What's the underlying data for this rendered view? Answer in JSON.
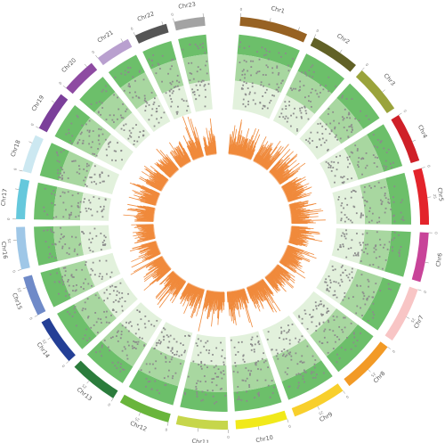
{
  "diagram": {
    "type": "circos",
    "chromosomes": [
      {
        "name": "Chr1",
        "color": "#976223",
        "length": 58,
        "ticks": [
          "0",
          "",
          ""
        ]
      },
      {
        "name": "Chr2",
        "color": "#616126",
        "length": 42,
        "ticks": [
          "0",
          ""
        ]
      },
      {
        "name": "Chr3",
        "color": "#9aa33b",
        "length": 42,
        "ticks": [
          "0",
          ""
        ]
      },
      {
        "name": "Chr4",
        "color": "#cf2028",
        "length": 42,
        "ticks": [
          "0",
          ""
        ]
      },
      {
        "name": "Chr5",
        "color": "#e3242b",
        "length": 48,
        "ticks": [
          "0",
          "25"
        ]
      },
      {
        "name": "Chr6",
        "color": "#c84499",
        "length": 42,
        "ticks": [
          "0",
          ""
        ]
      },
      {
        "name": "Chr7",
        "color": "#f8c5c5",
        "length": 48,
        "ticks": [
          "0",
          "25"
        ]
      },
      {
        "name": "Chr8",
        "color": "#f29a26",
        "length": 46,
        "ticks": [
          "0",
          "25"
        ]
      },
      {
        "name": "Chr9",
        "color": "#f8cf2c",
        "length": 46,
        "ticks": [
          "0",
          "25"
        ]
      },
      {
        "name": "Chr10",
        "color": "#f1e91a",
        "length": 44,
        "ticks": [
          "0",
          ""
        ]
      },
      {
        "name": "Chr11",
        "color": "#c6d64b",
        "length": 44,
        "ticks": [
          "0",
          ""
        ]
      },
      {
        "name": "Chr12",
        "color": "#69b53c",
        "length": 44,
        "ticks": [
          "0",
          "25"
        ]
      },
      {
        "name": "Chr13",
        "color": "#2b7c3c",
        "length": 42,
        "ticks": [
          "0",
          "25"
        ]
      },
      {
        "name": "Chr14",
        "color": "#243f96",
        "length": 40,
        "ticks": [
          "0",
          "25"
        ]
      },
      {
        "name": "Chr15",
        "color": "#6f8ac8",
        "length": 34,
        "ticks": [
          "0",
          "25"
        ]
      },
      {
        "name": "Chr16",
        "color": "#9fc7e7",
        "length": 36,
        "ticks": [
          "0",
          "25"
        ]
      },
      {
        "name": "Chr17",
        "color": "#65c8dc",
        "length": 34,
        "ticks": [
          "0",
          ""
        ]
      },
      {
        "name": "Chr18",
        "color": "#cce8f1",
        "length": 32,
        "ticks": [
          "0",
          ""
        ]
      },
      {
        "name": "Chr19",
        "color": "#7b3f9a",
        "length": 34,
        "ticks": [
          "0",
          ""
        ]
      },
      {
        "name": "Chr20",
        "color": "#8e4ba2",
        "length": 30,
        "ticks": [
          "0",
          ""
        ]
      },
      {
        "name": "Chr21",
        "color": "#b9a0cf",
        "length": 30,
        "ticks": [
          "0",
          ""
        ]
      },
      {
        "name": "Chr22",
        "color": "#555555",
        "length": 28,
        "ticks": [
          "0",
          ""
        ]
      },
      {
        "name": "Chr23",
        "color": "#a3a3a3",
        "length": 26,
        "ticks": [
          "0",
          ""
        ]
      }
    ],
    "track_colors": {
      "band_outer": "#6cbf6a",
      "band_middle": "#a8d7a0",
      "band_inner": "#e2f1dc",
      "scatter_point": "#8c8c8c",
      "histogram": "#f08a3c"
    }
  }
}
